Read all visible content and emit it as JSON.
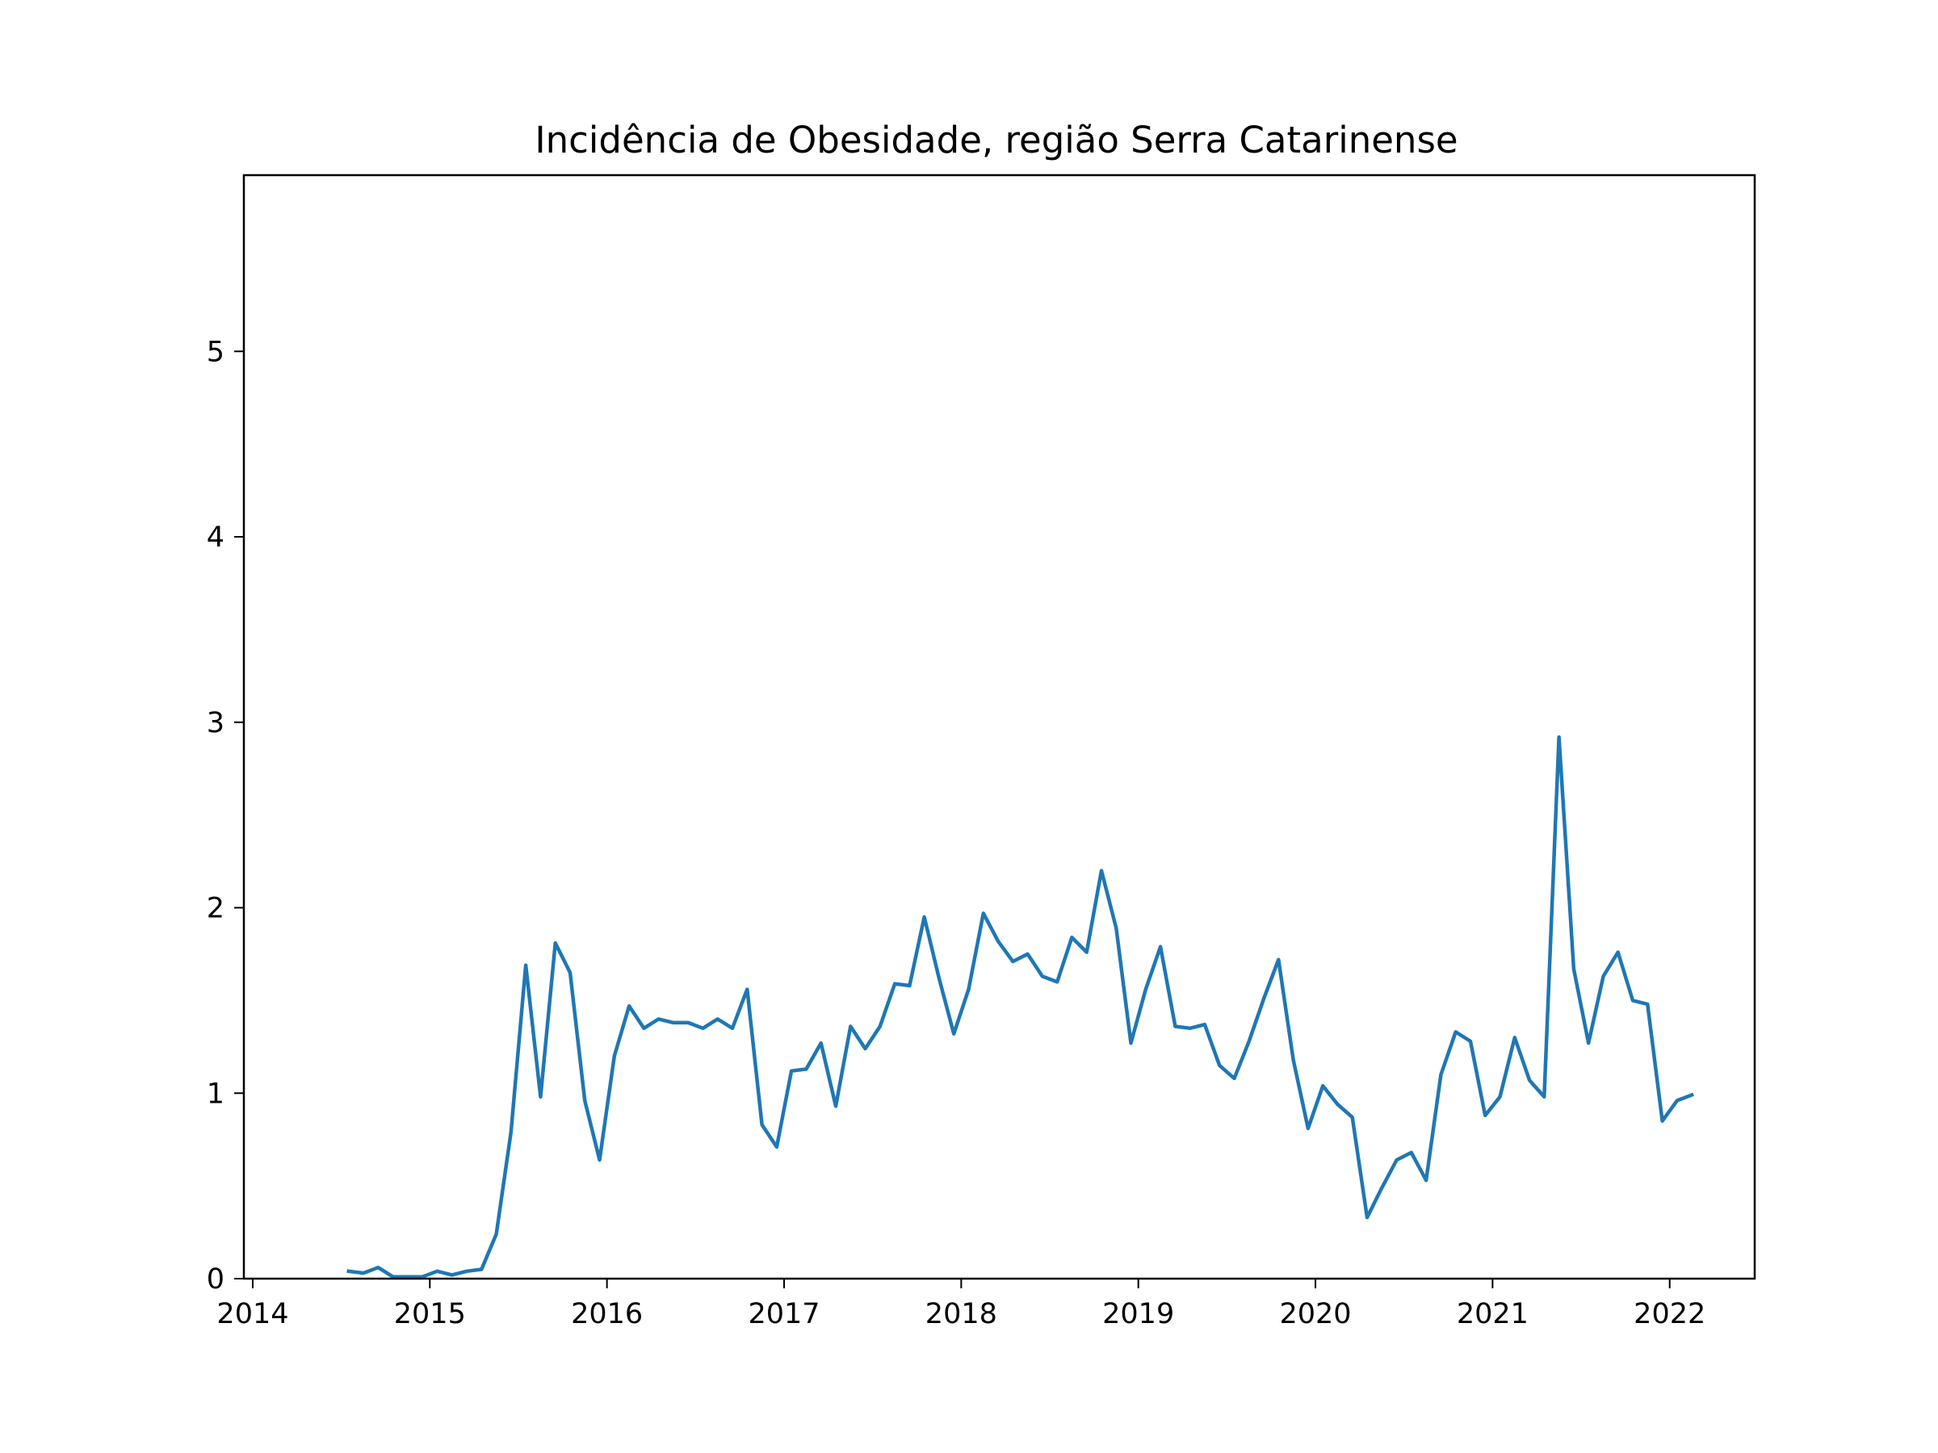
{
  "chart_data": {
    "type": "line",
    "title": "Incidência de Obesidade, região Serra Catarinense",
    "xlabel": "",
    "ylabel": "",
    "xlim": [
      2013.95,
      2022.48
    ],
    "ylim": [
      0,
      5.95
    ],
    "x_ticks": [
      2014,
      2015,
      2016,
      2017,
      2018,
      2019,
      2020,
      2021,
      2022
    ],
    "y_ticks": [
      0,
      1,
      2,
      3,
      4,
      5
    ],
    "grid": false,
    "legend": "none",
    "line_color": "#1f77b4",
    "series": [
      {
        "x": [
          "2014-07",
          "2014-08",
          "2014-09",
          "2014-10",
          "2014-11",
          "2014-12",
          "2015-01",
          "2015-02",
          "2015-03",
          "2015-04",
          "2015-05",
          "2015-06",
          "2015-07",
          "2015-08",
          "2015-09",
          "2015-10",
          "2015-11",
          "2015-12",
          "2016-01",
          "2016-02",
          "2016-03",
          "2016-04",
          "2016-05",
          "2016-06",
          "2016-07",
          "2016-08",
          "2016-09",
          "2016-10",
          "2016-11",
          "2016-12",
          "2017-01",
          "2017-02",
          "2017-03",
          "2017-04",
          "2017-05",
          "2017-06",
          "2017-07",
          "2017-08",
          "2017-09",
          "2017-10",
          "2017-11",
          "2017-12",
          "2018-01",
          "2018-02",
          "2018-03",
          "2018-04",
          "2018-05",
          "2018-06",
          "2018-07",
          "2018-08",
          "2018-09",
          "2018-10",
          "2018-11",
          "2018-12",
          "2019-01",
          "2019-02",
          "2019-03",
          "2019-04",
          "2019-05",
          "2019-06",
          "2019-07",
          "2019-08",
          "2019-09",
          "2019-10",
          "2019-11",
          "2019-12",
          "2020-01",
          "2020-02",
          "2020-03",
          "2020-04",
          "2020-05",
          "2020-06",
          "2020-07",
          "2020-08",
          "2020-09",
          "2020-10",
          "2020-11",
          "2020-12",
          "2021-01",
          "2021-02",
          "2021-03",
          "2021-04",
          "2021-05",
          "2021-06",
          "2021-07",
          "2021-08",
          "2021-09",
          "2021-10",
          "2021-11",
          "2021-12",
          "2022-01",
          "2022-02"
        ],
        "values": [
          0.04,
          0.03,
          0.06,
          0.01,
          0.01,
          0.01,
          0.04,
          0.02,
          0.04,
          0.05,
          0.24,
          0.79,
          1.69,
          0.98,
          1.81,
          1.65,
          0.96,
          0.64,
          1.2,
          1.47,
          1.35,
          1.4,
          1.38,
          1.38,
          1.35,
          1.4,
          1.35,
          1.56,
          0.83,
          0.71,
          1.12,
          1.13,
          1.27,
          0.93,
          1.36,
          1.24,
          1.36,
          1.59,
          1.58,
          1.95,
          1.62,
          1.32,
          1.56,
          1.97,
          1.82,
          1.71,
          1.75,
          1.63,
          1.6,
          1.84,
          1.76,
          2.2,
          1.89,
          1.27,
          1.56,
          1.79,
          1.36,
          1.35,
          1.37,
          1.15,
          1.08,
          1.28,
          1.51,
          1.72,
          1.18,
          0.81,
          1.04,
          0.94,
          0.87,
          0.33,
          0.49,
          0.64,
          0.68,
          0.53,
          1.1,
          1.33,
          1.28,
          0.88,
          0.98,
          1.3,
          1.07,
          0.98,
          2.92,
          1.67,
          1.27,
          1.63,
          1.76,
          1.5,
          1.48,
          0.85,
          0.96,
          0.99
        ]
      }
    ]
  }
}
